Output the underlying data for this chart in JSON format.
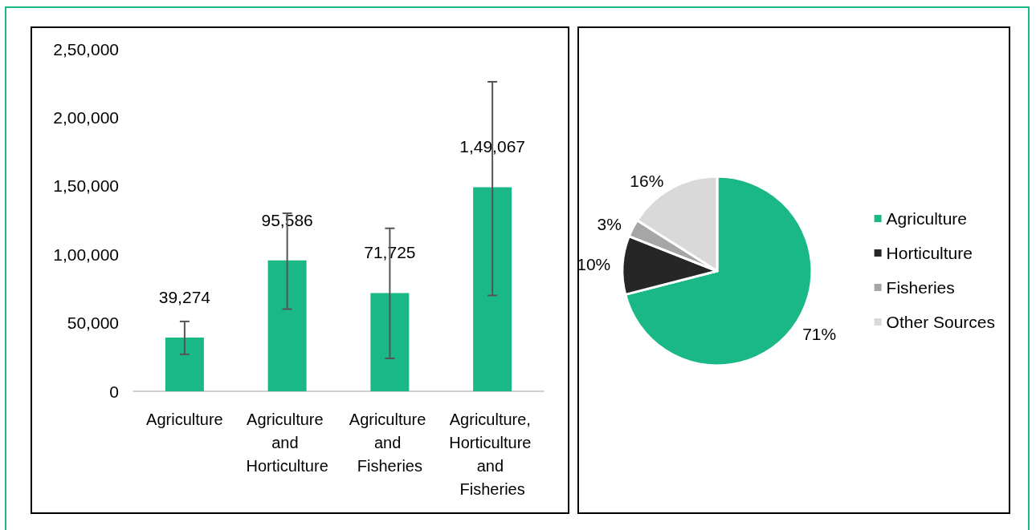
{
  "chart_data": [
    {
      "type": "bar",
      "categories": [
        "Agriculture",
        "Agriculture and Horticulture",
        "Agriculture and Fisheries",
        "Agriculture, Horticulture and Fisheries"
      ],
      "values": [
        39274,
        95586,
        71725,
        149067
      ],
      "color": "#1ab886",
      "value_labels": [
        "39,274",
        "95,586",
        "71,725",
        "1,49,067"
      ],
      "errors": [
        [
          27000,
          51000
        ],
        [
          60000,
          130000
        ],
        [
          24000,
          119000
        ],
        [
          70000,
          226000
        ]
      ],
      "ylim": [
        0,
        250000
      ],
      "yticks": [
        0,
        {
          "value": 50000,
          "label": "50,000"
        },
        {
          "value": 100000,
          "label": "1,00,000"
        },
        {
          "value": 150000,
          "label": "1,50,000"
        },
        {
          "value": 200000,
          "label": "2,00,000"
        },
        {
          "value": 250000,
          "label": "2,50,000"
        }
      ],
      "grid": false
    },
    {
      "type": "pie",
      "categories": [
        "Agriculture",
        "Horticulture",
        "Fisheries",
        "Other Sources"
      ],
      "values": [
        71,
        10,
        3,
        16
      ],
      "colors": [
        "#1ab886",
        "#262626",
        "#a6a6a6",
        "#d9d9d9"
      ],
      "value_labels": [
        "71%",
        "10%",
        "3%",
        "16%"
      ],
      "legend": "right"
    }
  ]
}
